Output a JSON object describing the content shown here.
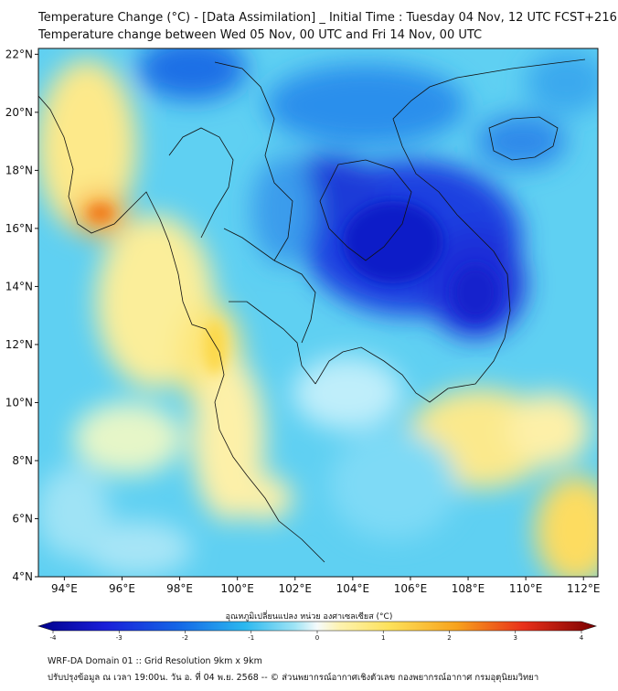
{
  "header": {
    "title_line1": "Temperature Change (°C) - [Data Assimilation] _ Initial Time : Tuesday 04 Nov, 12 UTC FCST+216",
    "title_line2": "Temperature change between Wed 05 Nov, 00 UTC and Fri 14 Nov, 00 UTC"
  },
  "map": {
    "lat_ticks": [
      "22°N",
      "20°N",
      "18°N",
      "16°N",
      "14°N",
      "12°N",
      "10°N",
      "8°N",
      "6°N",
      "4°N"
    ],
    "lon_ticks": [
      "94°E",
      "96°E",
      "98°E",
      "100°E",
      "102°E",
      "104°E",
      "106°E",
      "108°E",
      "110°E",
      "112°E"
    ],
    "lat_range": [
      4,
      22.2
    ],
    "lon_range": [
      93.1,
      112.5
    ]
  },
  "colorbar": {
    "label": "อุณหภูมิเปลี่ยนแปลง หน่วย องศาเซลเซียส (°C)",
    "ticks": [
      "-4",
      "-3",
      "-2",
      "-1",
      "0",
      "1",
      "2",
      "3",
      "4"
    ],
    "range": [
      -4,
      4
    ]
  },
  "footer": {
    "line1": "WRF-DA Domain 01 :: Grid Resolution 9km x 9km",
    "line2": "ปรับปรุงข้อมูล ณ เวลา 19:00น. วัน อ. ที่ 04 พ.ย. 2568 -- © ส่วนพยากรณ์อากาศเชิงตัวเลข กองพยากรณ์อากาศ กรมอุตุนิยมวิทยา"
  },
  "colors": {
    "cold_extreme": "#1f2bd6",
    "cold": "#1e7fe8",
    "cool": "#3cc8f0",
    "neutral": "#d9f5fb",
    "warm": "#fde98a",
    "hot": "#f07a1e",
    "hot_extreme": "#8a0000"
  }
}
